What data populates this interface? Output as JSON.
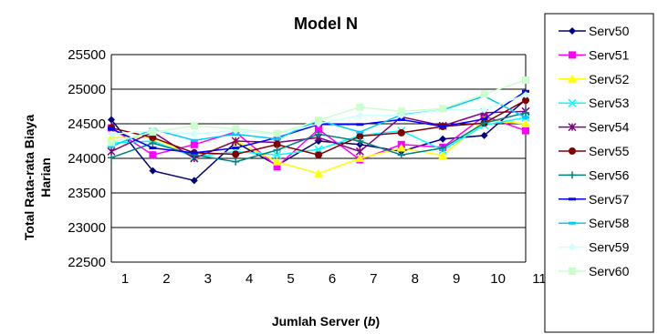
{
  "chart_data": {
    "type": "line",
    "title": "Model N",
    "xlabel_prefix": "Jumlah Server (",
    "xlabel_var": "b",
    "xlabel_suffix": ")",
    "ylabel_line1": "Total Rata-rata Biaya",
    "ylabel_line2": "Harian",
    "categories": [
      "1",
      "2",
      "3",
      "4",
      "5",
      "6",
      "7",
      "8",
      "9",
      "10",
      "11"
    ],
    "yticks": [
      "22500",
      "23000",
      "23500",
      "24000",
      "24500",
      "25000",
      "25500"
    ],
    "ylim": [
      22500,
      25500
    ],
    "grid": "horizontal",
    "legend_position": "right",
    "series": [
      {
        "name": "Serv50",
        "color": "#000080",
        "marker": "diamond",
        "values": [
          24560,
          23820,
          23680,
          24230,
          23900,
          24250,
          24200,
          24100,
          24280,
          24330,
          24850
        ]
      },
      {
        "name": "Serv51",
        "color": "#FF00FF",
        "marker": "square",
        "values": [
          24440,
          24050,
          24200,
          24380,
          23880,
          24420,
          23980,
          24200,
          24160,
          24610,
          24400
        ]
      },
      {
        "name": "Serv52",
        "color": "#FFFF00",
        "marker": "triangle",
        "values": [
          24300,
          24300,
          24020,
          24250,
          23950,
          23780,
          24000,
          24150,
          24040,
          24550,
          24500
        ]
      },
      {
        "name": "Serv53",
        "color": "#00FFFF",
        "marker": "x",
        "values": [
          24220,
          24250,
          24020,
          24100,
          24050,
          24130,
          24330,
          24400,
          24120,
          24480,
          24590
        ]
      },
      {
        "name": "Serv54",
        "color": "#800080",
        "marker": "star",
        "values": [
          24100,
          24380,
          24000,
          24250,
          24230,
          24300,
          24100,
          24600,
          24470,
          24660,
          24680
        ]
      },
      {
        "name": "Serv55",
        "color": "#800000",
        "marker": "circle",
        "values": [
          24440,
          24300,
          24080,
          24060,
          24200,
          24050,
          24320,
          24370,
          24460,
          24510,
          24840
        ]
      },
      {
        "name": "Serv56",
        "color": "#008080",
        "marker": "plus",
        "values": [
          24010,
          24220,
          24050,
          23950,
          24120,
          24350,
          24250,
          24050,
          24150,
          24510,
          24660
        ]
      },
      {
        "name": "Serv57",
        "color": "#0000FF",
        "marker": "dash",
        "values": [
          24430,
          24150,
          24080,
          24150,
          24300,
          24490,
          24490,
          24560,
          24460,
          24570,
          24970
        ]
      },
      {
        "name": "Serv58",
        "color": "#00CCFF",
        "marker": "dash",
        "values": [
          24170,
          24420,
          24260,
          24350,
          24280,
          24550,
          24380,
          24630,
          24700,
          24900,
          24590
        ]
      },
      {
        "name": "Serv59",
        "color": "#CCFFFF",
        "marker": "diamond",
        "values": [
          24350,
          24400,
          24350,
          24400,
          24350,
          24500,
          24620,
          24620,
          24700,
          24700,
          24920
        ]
      },
      {
        "name": "Serv60",
        "color": "#CCFFCC",
        "marker": "square",
        "values": [
          24230,
          24380,
          24470,
          24430,
          24360,
          24550,
          24740,
          24680,
          24720,
          24930,
          25130
        ]
      }
    ]
  }
}
